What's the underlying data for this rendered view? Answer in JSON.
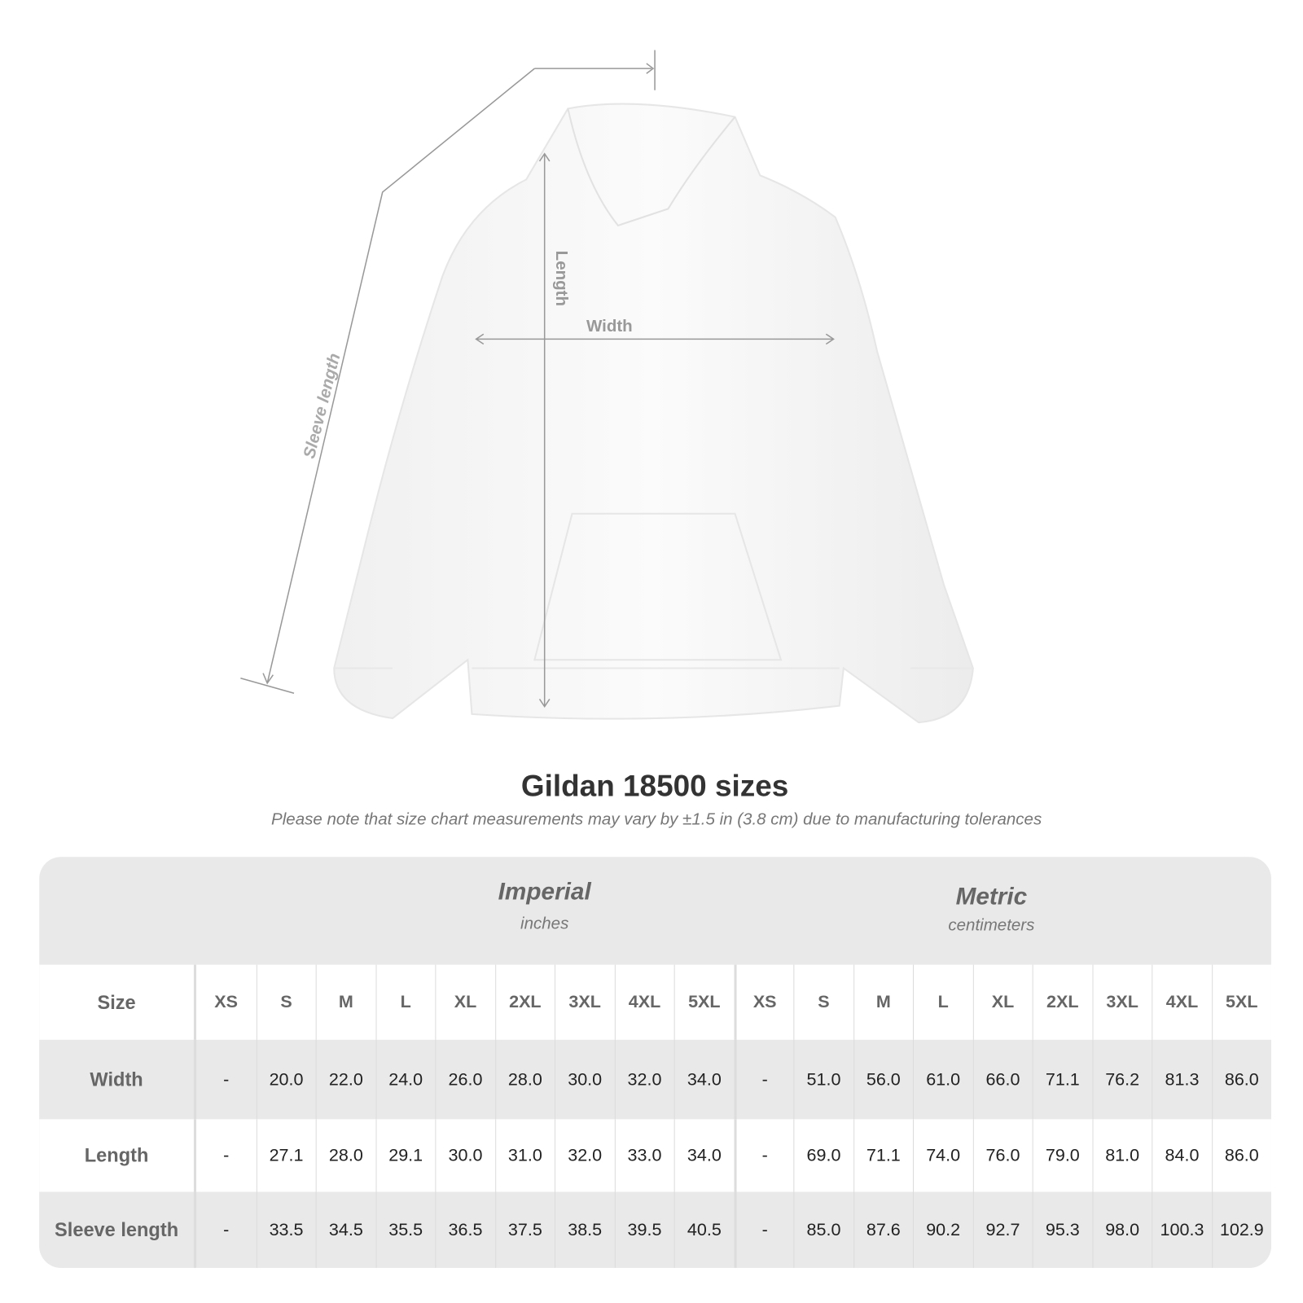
{
  "diagram": {
    "labels": {
      "sleeve": "Sleeve length",
      "length": "Length",
      "width": "Width"
    },
    "line_color": "#999999"
  },
  "title": "Gildan 18500 sizes",
  "note": "Please note that size chart measurements may vary by ±1.5 in (3.8 cm) due to manufacturing tolerances",
  "table": {
    "imperial": {
      "name": "Imperial",
      "unit": "inches"
    },
    "metric": {
      "name": "Metric",
      "unit": "centimeters"
    },
    "size_label": "Size",
    "sizes": [
      "XS",
      "S",
      "M",
      "L",
      "XL",
      "2XL",
      "3XL",
      "4XL",
      "5XL"
    ],
    "rows": [
      {
        "label": "Width",
        "imperial": [
          "-",
          "20.0",
          "22.0",
          "24.0",
          "26.0",
          "28.0",
          "30.0",
          "32.0",
          "34.0"
        ],
        "metric": [
          "-",
          "51.0",
          "56.0",
          "61.0",
          "66.0",
          "71.1",
          "76.2",
          "81.3",
          "86.0"
        ]
      },
      {
        "label": "Length",
        "imperial": [
          "-",
          "27.1",
          "28.0",
          "29.1",
          "30.0",
          "31.0",
          "32.0",
          "33.0",
          "34.0"
        ],
        "metric": [
          "-",
          "69.0",
          "71.1",
          "74.0",
          "76.0",
          "79.0",
          "81.0",
          "84.0",
          "86.0"
        ]
      },
      {
        "label": "Sleeve length",
        "imperial": [
          "-",
          "33.5",
          "34.5",
          "35.5",
          "36.5",
          "37.5",
          "38.5",
          "39.5",
          "40.5"
        ],
        "metric": [
          "-",
          "85.0",
          "87.6",
          "90.2",
          "92.7",
          "95.3",
          "98.0",
          "100.3",
          "102.9"
        ]
      }
    ]
  }
}
